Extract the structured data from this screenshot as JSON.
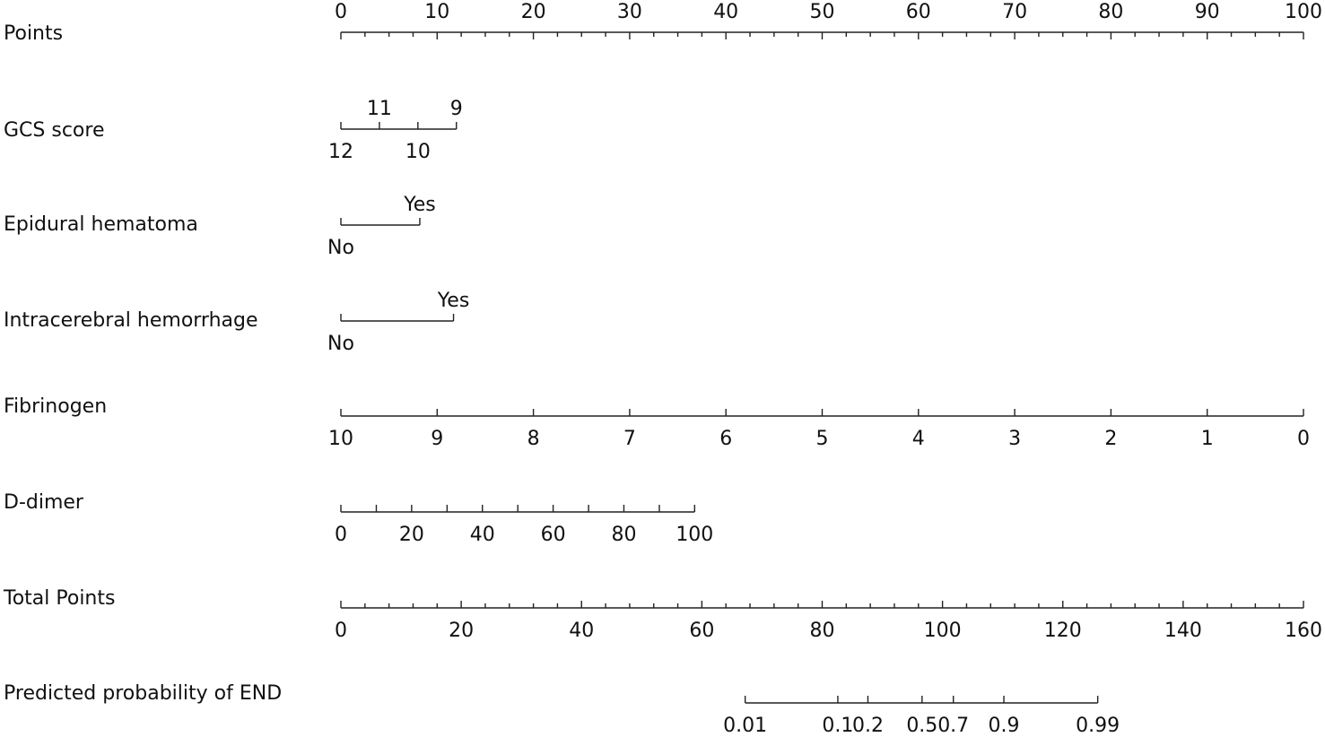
{
  "chart_data": {
    "type": "nomogram",
    "points_range": [
      0,
      100
    ],
    "rows": [
      {
        "label": "Points",
        "kind": "points",
        "label_side": "above",
        "ticks": [
          {
            "text": "0",
            "points": 0
          },
          {
            "text": "10",
            "points": 10
          },
          {
            "text": "20",
            "points": 20
          },
          {
            "text": "30",
            "points": 30
          },
          {
            "text": "40",
            "points": 40
          },
          {
            "text": "50",
            "points": 50
          },
          {
            "text": "60",
            "points": 60
          },
          {
            "text": "70",
            "points": 70
          },
          {
            "text": "80",
            "points": 80
          },
          {
            "text": "90",
            "points": 90
          },
          {
            "text": "100",
            "points": 100
          }
        ],
        "minor_step": 2.5
      },
      {
        "label": "GCS score",
        "kind": "variable",
        "ticks": [
          {
            "text": "12",
            "points": 0,
            "side": "below"
          },
          {
            "text": "11",
            "points": 4,
            "side": "above"
          },
          {
            "text": "10",
            "points": 8,
            "side": "below"
          },
          {
            "text": "9",
            "points": 12,
            "side": "above"
          }
        ]
      },
      {
        "label": "Epidural hematoma",
        "kind": "variable",
        "ticks": [
          {
            "text": "No",
            "points": 0,
            "side": "below"
          },
          {
            "text": "Yes",
            "points": 8.2,
            "side": "above"
          }
        ]
      },
      {
        "label": "Intracerebral hemorrhage",
        "kind": "variable",
        "ticks": [
          {
            "text": "No",
            "points": 0,
            "side": "below"
          },
          {
            "text": "Yes",
            "points": 11.7,
            "side": "above"
          }
        ]
      },
      {
        "label": "Fibrinogen",
        "kind": "variable",
        "ticks": [
          {
            "text": "10",
            "points": 0,
            "side": "below"
          },
          {
            "text": "9",
            "points": 10,
            "side": "below"
          },
          {
            "text": "8",
            "points": 20,
            "side": "below"
          },
          {
            "text": "7",
            "points": 30,
            "side": "below"
          },
          {
            "text": "6",
            "points": 40,
            "side": "below"
          },
          {
            "text": "5",
            "points": 50,
            "side": "below"
          },
          {
            "text": "4",
            "points": 60,
            "side": "below"
          },
          {
            "text": "3",
            "points": 70,
            "side": "below"
          },
          {
            "text": "2",
            "points": 80,
            "side": "below"
          },
          {
            "text": "1",
            "points": 90,
            "side": "below"
          },
          {
            "text": "0",
            "points": 100,
            "side": "below"
          }
        ]
      },
      {
        "label": "D-dimer",
        "kind": "variable",
        "ticks": [
          {
            "text": "0",
            "points": 0,
            "side": "below"
          },
          {
            "text": "",
            "points": 3.68,
            "side": "below"
          },
          {
            "text": "20",
            "points": 7.35,
            "side": "below"
          },
          {
            "text": "",
            "points": 11.03,
            "side": "below"
          },
          {
            "text": "40",
            "points": 14.7,
            "side": "below"
          },
          {
            "text": "",
            "points": 18.38,
            "side": "below"
          },
          {
            "text": "60",
            "points": 22.05,
            "side": "below"
          },
          {
            "text": "",
            "points": 25.73,
            "side": "below"
          },
          {
            "text": "80",
            "points": 29.4,
            "side": "below"
          },
          {
            "text": "",
            "points": 33.08,
            "side": "below"
          },
          {
            "text": "100",
            "points": 36.75,
            "side": "below"
          }
        ]
      },
      {
        "label": "Total Points",
        "kind": "total",
        "range": [
          0,
          160
        ],
        "ticks": [
          {
            "text": "0",
            "value": 0
          },
          {
            "text": "20",
            "value": 20
          },
          {
            "text": "40",
            "value": 40
          },
          {
            "text": "60",
            "value": 60
          },
          {
            "text": "80",
            "value": 80
          },
          {
            "text": "100",
            "value": 100
          },
          {
            "text": "120",
            "value": 120
          },
          {
            "text": "140",
            "value": 140
          },
          {
            "text": "160",
            "value": 160
          }
        ],
        "minor_step": 4
      },
      {
        "label": "Predicted probability of END",
        "kind": "probability",
        "ticks": [
          {
            "text": "0.01",
            "total_points": 67.2
          },
          {
            "text": "0.1",
            "total_points": 82.6
          },
          {
            "text": "0.2",
            "total_points": 87.6
          },
          {
            "text": "0.5",
            "total_points": 96.6
          },
          {
            "text": "0.7",
            "total_points": 101.8
          },
          {
            "text": "0.9",
            "total_points": 110.2
          },
          {
            "text": "0.99",
            "total_points": 125.8
          }
        ]
      }
    ]
  }
}
